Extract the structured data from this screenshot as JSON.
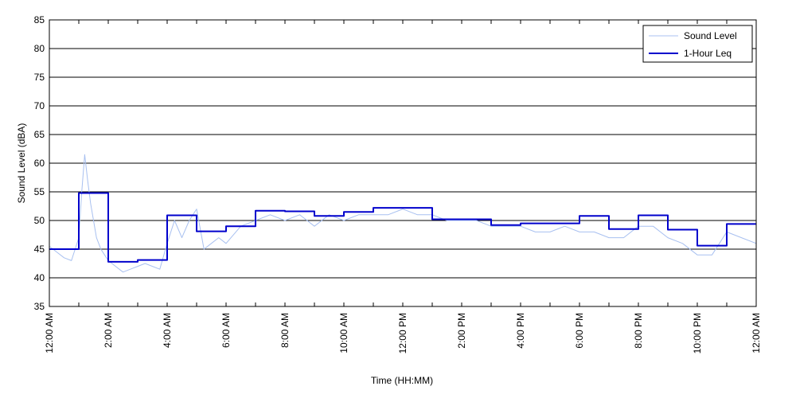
{
  "chart_data": {
    "type": "line",
    "title": "",
    "xlabel": "Time (HH:MM)",
    "ylabel": "Sound Level (dBA)",
    "xlim": [
      0,
      24
    ],
    "ylim": [
      35,
      85
    ],
    "x_tick_labels": [
      "12:00 AM",
      "2:00 AM",
      "4:00 AM",
      "6:00 AM",
      "8:00 AM",
      "10:00 AM",
      "12:00 PM",
      "2:00 PM",
      "4:00 PM",
      "6:00 PM",
      "8:00 PM",
      "10:00 PM",
      "12:00 AM"
    ],
    "y_ticks": [
      35,
      40,
      45,
      50,
      55,
      60,
      65,
      70,
      75,
      80,
      85
    ],
    "grid": "horizontal",
    "legend_position": "top-right",
    "series": [
      {
        "name": "Sound Level",
        "color": "#a8c0f0",
        "x": [
          0,
          0.25,
          0.5,
          0.75,
          1,
          1.1,
          1.2,
          1.3,
          1.4,
          1.5,
          1.6,
          1.75,
          2,
          2.25,
          2.5,
          2.75,
          3,
          3.25,
          3.5,
          3.75,
          4,
          4.25,
          4.5,
          4.75,
          5,
          5.25,
          5.5,
          5.75,
          6,
          6.5,
          7,
          7.5,
          8,
          8.5,
          9,
          9.5,
          10,
          10.5,
          11,
          11.5,
          12,
          12.5,
          13,
          13.5,
          14,
          14.5,
          15,
          15.5,
          16,
          16.5,
          17,
          17.5,
          18,
          18.5,
          19,
          19.5,
          20,
          20.5,
          21,
          21.5,
          22,
          22.5,
          23,
          23.5,
          24
        ],
        "y": [
          45.5,
          44.5,
          43.5,
          43,
          47,
          55,
          61.5,
          57,
          53,
          50,
          47,
          45,
          43,
          42,
          41,
          41.5,
          42,
          42.5,
          42,
          41.5,
          46,
          50,
          47,
          50,
          52,
          45,
          46,
          47,
          46,
          49,
          50,
          51,
          50,
          51,
          49,
          51,
          50,
          51,
          51,
          51,
          52,
          51,
          51,
          50,
          50,
          50,
          49,
          49,
          49,
          48,
          48,
          49,
          48,
          48,
          47,
          47,
          49,
          49,
          47,
          46,
          44,
          44,
          48,
          47,
          46
        ]
      },
      {
        "name": "1-Hour Leq",
        "color": "#0000cc",
        "step": true,
        "x": [
          0,
          1,
          2,
          3,
          4,
          5,
          6,
          7,
          8,
          9,
          10,
          11,
          12,
          13,
          14,
          15,
          16,
          17,
          18,
          19,
          20,
          21,
          22,
          23,
          24
        ],
        "y": [
          45,
          54.8,
          42.8,
          43.1,
          50.9,
          48.1,
          49,
          51.7,
          51.6,
          50.8,
          51.5,
          52.2,
          52.2,
          50.2,
          50.2,
          49.2,
          49.5,
          49.5,
          50.8,
          48.5,
          50.9,
          48.4,
          45.6,
          49.4,
          49.4
        ]
      }
    ]
  }
}
